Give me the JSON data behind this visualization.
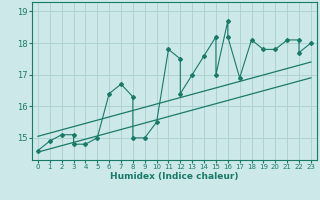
{
  "xlabel": "Humidex (Indice chaleur)",
  "bg_color": "#cce8e8",
  "grid_color": "#aacfcf",
  "line_color": "#1a7a6a",
  "x_data": [
    0,
    1,
    2,
    3,
    3,
    4,
    5,
    6,
    7,
    8,
    8,
    9,
    10,
    11,
    12,
    12,
    13,
    14,
    15,
    15,
    16,
    16,
    17,
    18,
    19,
    20,
    21,
    22,
    22,
    23
  ],
  "y_data": [
    14.6,
    14.9,
    15.1,
    15.1,
    14.8,
    14.8,
    15.0,
    16.4,
    16.7,
    16.3,
    15.0,
    15.0,
    15.5,
    17.8,
    17.5,
    16.4,
    17.0,
    17.6,
    18.2,
    17.0,
    18.7,
    18.2,
    16.9,
    18.1,
    17.8,
    17.8,
    18.1,
    18.1,
    17.7,
    18.0
  ],
  "lower_line": [
    [
      0,
      14.55
    ],
    [
      23,
      16.9
    ]
  ],
  "upper_line": [
    [
      0,
      15.05
    ],
    [
      23,
      17.4
    ]
  ],
  "ylim": [
    14.3,
    19.3
  ],
  "yticks": [
    15,
    16,
    17,
    18,
    19
  ],
  "xlim": [
    -0.5,
    23.5
  ],
  "xticks": [
    0,
    1,
    2,
    3,
    4,
    5,
    6,
    7,
    8,
    9,
    10,
    11,
    12,
    13,
    14,
    15,
    16,
    17,
    18,
    19,
    20,
    21,
    22,
    23
  ]
}
